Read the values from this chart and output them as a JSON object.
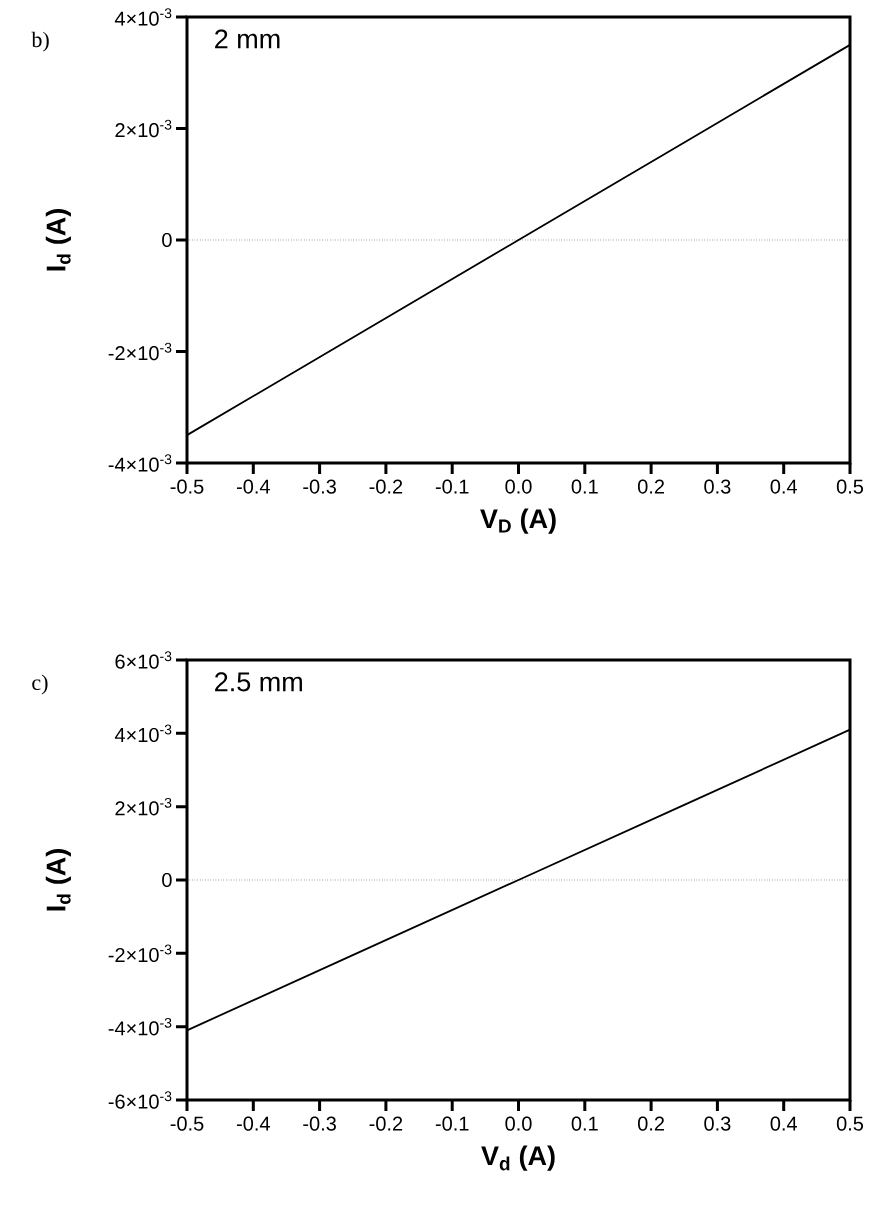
{
  "chart_data": [
    {
      "type": "line",
      "xlabel": "V$_{D}$ (A)",
      "ylabel": "I$_{d}$ (A)",
      "annotations": [
        "b)",
        "2 mm"
      ],
      "x": [
        -0.5,
        -0.25,
        0,
        0.25,
        0.5
      ],
      "series": [
        {
          "color": "#000000",
          "values": [
            -0.0035,
            -0.00175,
            0,
            0.00175,
            0.0035
          ]
        }
      ],
      "xlim": [
        -0.5,
        0.5
      ],
      "ylim": [
        -0.004,
        0.004
      ],
      "xticks": [
        -0.5,
        -0.4,
        -0.3,
        -0.2,
        -0.1,
        {
          "value": 0,
          "label": "0.0"
        },
        0.1,
        0.2,
        0.3,
        0.4,
        0.5
      ],
      "yticks": [
        {
          "value": -0.004,
          "label": "-4×10$^{-3}$"
        },
        {
          "value": -0.002,
          "label": "-2×10$^{-3}$"
        },
        0,
        {
          "value": 0.002,
          "label": "2×10$^{-3}$"
        },
        {
          "value": 0.004,
          "label": "4×10$^{-3}$"
        }
      ],
      "ref_lines": [
        {
          "axis": "y",
          "value": 0,
          "line_style": "dotted"
        }
      ],
      "marker": "none",
      "line_style": "solid"
    },
    {
      "type": "line",
      "xlabel": "V$_{d}$ (A)",
      "ylabel": "I$_{d}$ (A)",
      "annotations": [
        "c)",
        "2.5 mm"
      ],
      "x": [
        -0.5,
        -0.25,
        0,
        0.25,
        0.5
      ],
      "series": [
        {
          "color": "#000000",
          "values": [
            -0.0041,
            -0.00205,
            0,
            0.00205,
            0.0041
          ]
        }
      ],
      "xlim": [
        -0.5,
        0.5
      ],
      "ylim": [
        -0.006,
        0.006
      ],
      "xticks": [
        -0.5,
        -0.4,
        -0.3,
        -0.2,
        -0.1,
        {
          "value": 0,
          "label": "0.0"
        },
        0.1,
        0.2,
        0.3,
        0.4,
        0.5
      ],
      "yticks": [
        {
          "value": -0.006,
          "label": "-6×10$^{-3}$"
        },
        {
          "value": -0.004,
          "label": "-4×10$^{-3}$"
        },
        {
          "value": -0.002,
          "label": "-2×10$^{-3}$"
        },
        0,
        {
          "value": 0.002,
          "label": "2×10$^{-3}$"
        },
        {
          "value": 0.004,
          "label": "4×10$^{-3}$"
        },
        {
          "value": 0.006,
          "label": "6×10$^{-3}$"
        }
      ],
      "ref_lines": [
        {
          "axis": "y",
          "value": 0,
          "line_style": "dotted"
        }
      ],
      "marker": "none",
      "line_style": "solid"
    }
  ]
}
